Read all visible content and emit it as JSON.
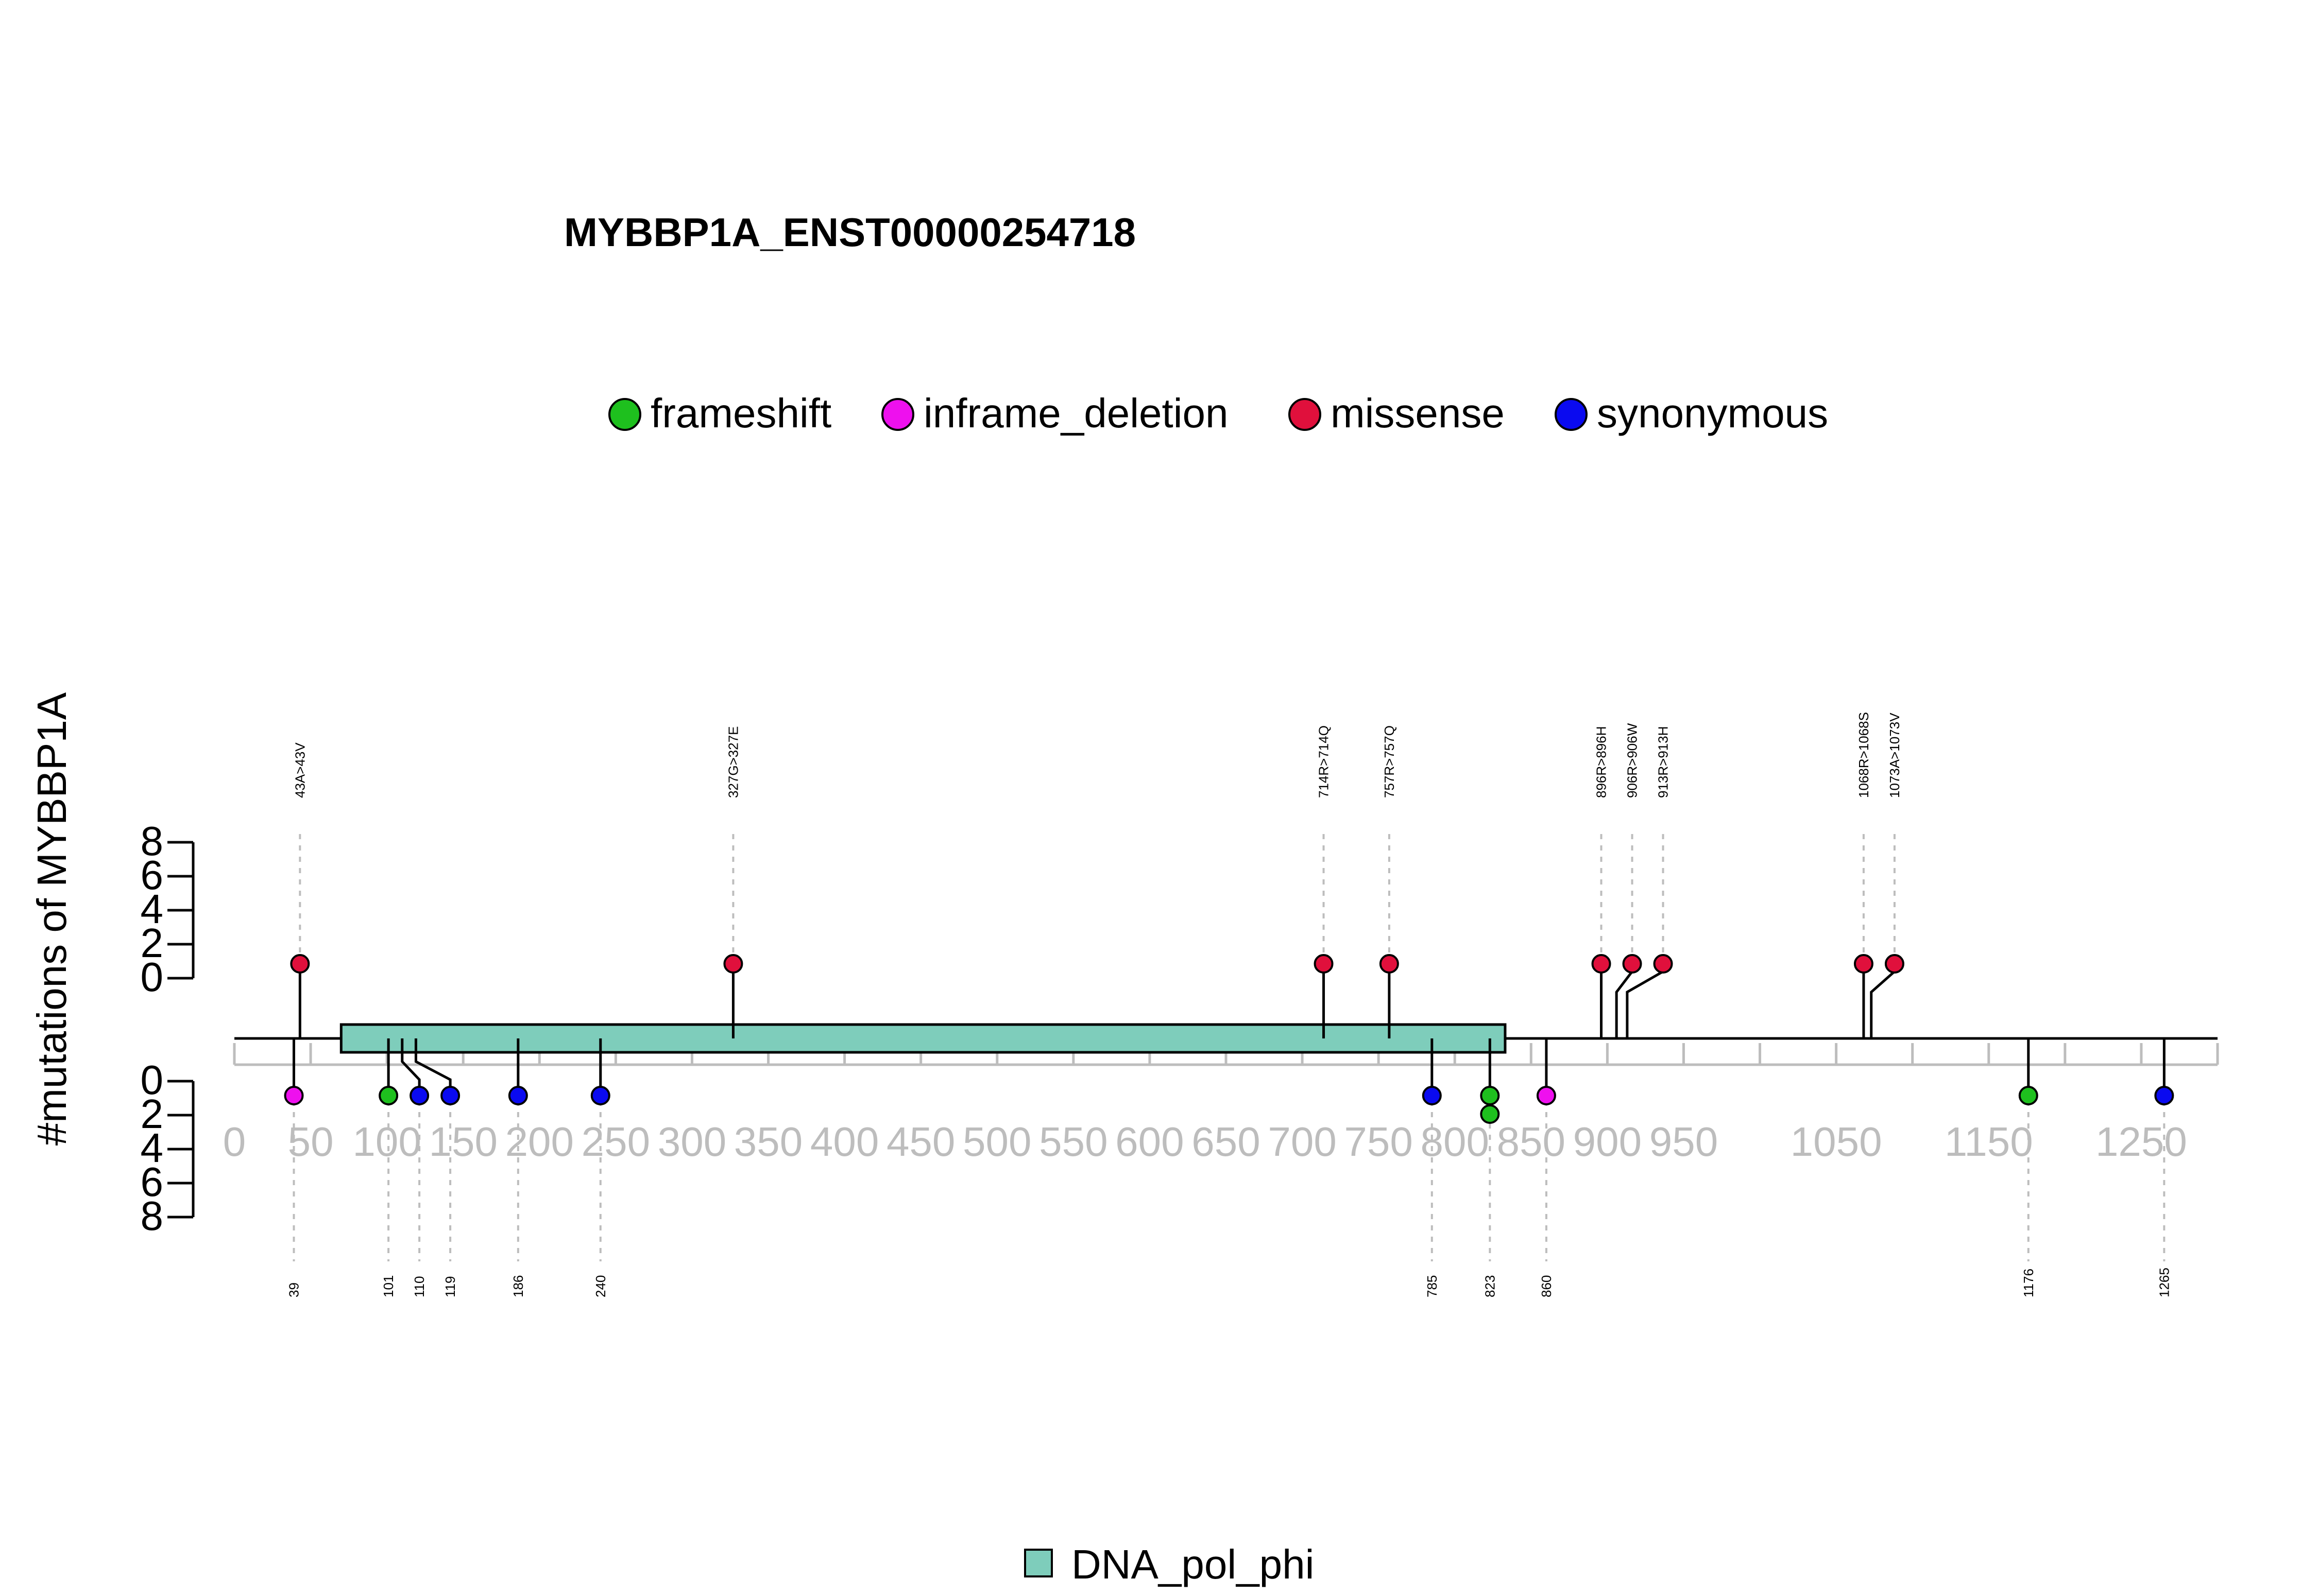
{
  "chart_data": {
    "type": "lollipop",
    "title": "MYBBP1A_ENST00000254718",
    "ylabel": "#mutations of MYBBP1A",
    "legend": {
      "placement": "top-center",
      "entries": [
        {
          "name": "frameshift",
          "color": "#1ec01e"
        },
        {
          "name": "inframe_deletion",
          "color": "#ee10ee"
        },
        {
          "name": "missense",
          "color": "#e0103c"
        },
        {
          "name": "synonymous",
          "color": "#0a0af0"
        }
      ]
    },
    "domain_legend": {
      "name": "DNA_pol_phi",
      "color": "#7ecdbb"
    },
    "domains": [
      {
        "name": "DNA_pol_phi",
        "start": 70,
        "end": 833,
        "color": "#7ecdbb"
      }
    ],
    "protein_length": 1300,
    "x_ticks": [
      0,
      50,
      100,
      150,
      200,
      250,
      300,
      350,
      400,
      450,
      500,
      550,
      600,
      650,
      700,
      750,
      800,
      850,
      900,
      950,
      1050,
      1150,
      1250
    ],
    "x_tick_marks": [
      0,
      50,
      100,
      150,
      200,
      250,
      300,
      350,
      400,
      450,
      500,
      550,
      600,
      650,
      700,
      750,
      800,
      850,
      900,
      950,
      1000,
      1050,
      1100,
      1150,
      1200,
      1250,
      1300
    ],
    "y_ticks": [
      0,
      2,
      4,
      6,
      8
    ],
    "ylim": [
      0,
      8
    ],
    "top_mutations": [
      {
        "position": 43,
        "count": 1,
        "type": "missense",
        "label": "43A>43V"
      },
      {
        "position": 327,
        "count": 1,
        "type": "missense",
        "label": "327G>327E"
      },
      {
        "position": 714,
        "count": 1,
        "type": "missense",
        "label": "714R>714Q"
      },
      {
        "position": 757,
        "count": 1,
        "type": "missense",
        "label": "757R>757Q"
      },
      {
        "position": 896,
        "count": 1,
        "type": "missense",
        "label": "896R>896H"
      },
      {
        "position": 906,
        "count": 1,
        "type": "missense",
        "label": "906R>906W"
      },
      {
        "position": 913,
        "count": 1,
        "type": "missense",
        "label": "913R>913H"
      },
      {
        "position": 1068,
        "count": 1,
        "type": "missense",
        "label": "1068R>1068S"
      },
      {
        "position": 1073,
        "count": 1,
        "type": "missense",
        "label": "1073A>1073V"
      }
    ],
    "bottom_mutations": [
      {
        "position": 39,
        "count": 1,
        "type": "inframe_deletion",
        "label": "39"
      },
      {
        "position": 101,
        "count": 1,
        "type": "frameshift",
        "label": "101"
      },
      {
        "position": 110,
        "count": 1,
        "type": "synonymous",
        "label": "110"
      },
      {
        "position": 119,
        "count": 1,
        "type": "synonymous",
        "label": "119"
      },
      {
        "position": 186,
        "count": 1,
        "type": "synonymous",
        "label": "186"
      },
      {
        "position": 240,
        "count": 1,
        "type": "synonymous",
        "label": "240"
      },
      {
        "position": 785,
        "count": 1,
        "type": "synonymous",
        "label": "785"
      },
      {
        "position": 823,
        "count": 2,
        "type": "frameshift",
        "label": "823"
      },
      {
        "position": 860,
        "count": 1,
        "type": "inframe_deletion",
        "label": "860"
      },
      {
        "position": 1176,
        "count": 1,
        "type": "frameshift",
        "label": "1176"
      },
      {
        "position": 1265,
        "count": 1,
        "type": "synonymous",
        "label": "1265"
      }
    ]
  }
}
